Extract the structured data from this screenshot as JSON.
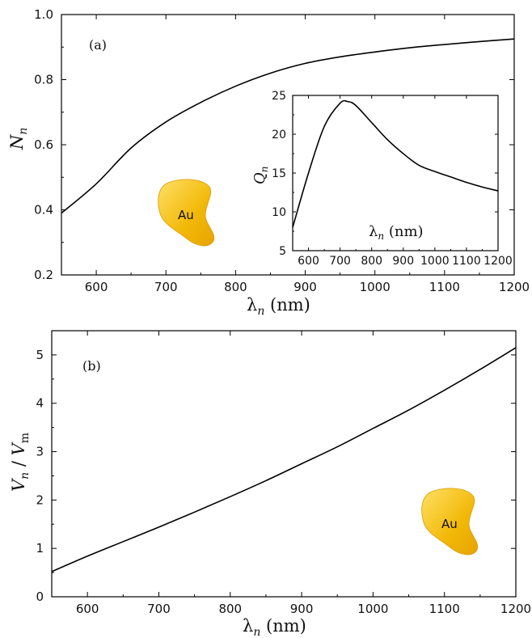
{
  "colors": {
    "particle_light": "#ffd84a",
    "particle_dark": "#e6a400",
    "line": "#000000"
  },
  "chart_data": [
    {
      "id": "panel_a_main",
      "type": "line",
      "panel_label": "(a)",
      "xlabel_main": "λ",
      "xlabel_sub": "n",
      "xlabel_unit": " (nm)",
      "ylabel_main": "N",
      "ylabel_sub": "n",
      "xlim": [
        550,
        1200
      ],
      "ylim": [
        0.2,
        1.0
      ],
      "xticks": [
        600,
        700,
        800,
        900,
        1000,
        1100,
        1200
      ],
      "xtick_labels": [
        "600",
        "700",
        "800",
        "900",
        "1000",
        "1100",
        "1200"
      ],
      "yticks": [
        0.2,
        0.4,
        0.6,
        0.8,
        1.0
      ],
      "ytick_labels": [
        "0.2",
        "0.4",
        "0.6",
        "0.8",
        "1.0"
      ],
      "annotation": "Au",
      "series": [
        {
          "x": [
            550,
            600,
            650,
            700,
            750,
            800,
            850,
            900,
            950,
            1000,
            1050,
            1100,
            1150,
            1200
          ],
          "y": [
            0.39,
            0.48,
            0.59,
            0.67,
            0.73,
            0.78,
            0.82,
            0.85,
            0.87,
            0.885,
            0.898,
            0.908,
            0.917,
            0.925
          ]
        }
      ]
    },
    {
      "id": "panel_a_inset",
      "type": "line",
      "xlabel_main": "λ",
      "xlabel_sub": "n",
      "xlabel_unit": " (nm)",
      "ylabel_main": "Q",
      "ylabel_sub": "n",
      "xlim": [
        550,
        1200
      ],
      "ylim": [
        5,
        25
      ],
      "xticks": [
        600,
        700,
        800,
        900,
        1000,
        1100,
        1200
      ],
      "xtick_labels": [
        "600",
        "700",
        "800",
        "900",
        "1000",
        "1100",
        "1200"
      ],
      "yticks": [
        5,
        10,
        15,
        20,
        25
      ],
      "ytick_labels": [
        "5",
        "10",
        "15",
        "20",
        "25"
      ],
      "series": [
        {
          "x": [
            550,
            600,
            650,
            700,
            725,
            750,
            800,
            850,
            900,
            950,
            1000,
            1050,
            1100,
            1150,
            1200
          ],
          "y": [
            8.0,
            15.0,
            21.0,
            24.0,
            24.2,
            23.7,
            21.5,
            19.3,
            17.5,
            16.0,
            15.2,
            14.5,
            13.8,
            13.2,
            12.7
          ]
        }
      ]
    },
    {
      "id": "panel_b",
      "type": "line",
      "panel_label": "(b)",
      "xlabel_main": "λ",
      "xlabel_sub": "n",
      "xlabel_unit": " (nm)",
      "ylabel_parts": [
        "V",
        "n",
        " / ",
        "V",
        "m"
      ],
      "xlim": [
        550,
        1200
      ],
      "ylim": [
        0,
        5.5
      ],
      "xticks": [
        600,
        700,
        800,
        900,
        1000,
        1100,
        1200
      ],
      "xtick_labels": [
        "600",
        "700",
        "800",
        "900",
        "1000",
        "1100",
        "1200"
      ],
      "yticks": [
        0,
        1,
        2,
        3,
        4,
        5
      ],
      "ytick_labels": [
        "0",
        "1",
        "2",
        "3",
        "4",
        "5"
      ],
      "annotation": "Au",
      "series": [
        {
          "x": [
            550,
            600,
            650,
            700,
            750,
            800,
            850,
            900,
            950,
            1000,
            1050,
            1100,
            1150,
            1200
          ],
          "y": [
            0.52,
            0.84,
            1.14,
            1.44,
            1.75,
            2.07,
            2.4,
            2.75,
            3.1,
            3.48,
            3.86,
            4.27,
            4.7,
            5.15
          ]
        }
      ]
    }
  ]
}
